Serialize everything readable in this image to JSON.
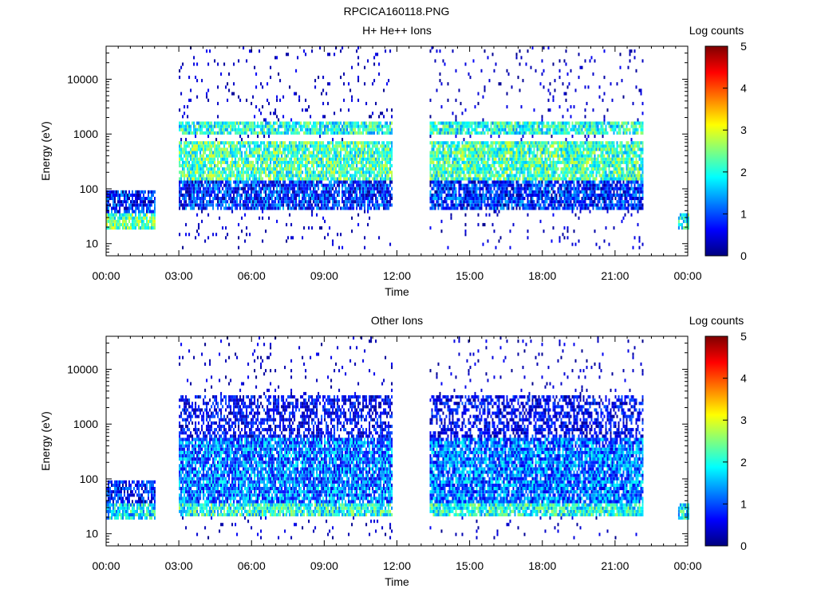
{
  "page": {
    "title": "RPCICA160118.PNG"
  },
  "colorbar": {
    "label": "Log counts",
    "ticks": [
      "0",
      "1",
      "2",
      "3",
      "4",
      "5"
    ],
    "stops": [
      "#00007f",
      "#0000ff",
      "#007fff",
      "#00ffff",
      "#7fff7f",
      "#ffff00",
      "#ff7f00",
      "#ff0000",
      "#7f0000"
    ]
  },
  "chart_data": [
    {
      "type": "heatmap",
      "title": "H+ He++ Ions",
      "xlabel": "Time",
      "ylabel": "Energy (eV)",
      "x_ticks": [
        "00:00",
        "03:00",
        "06:00",
        "09:00",
        "12:00",
        "15:00",
        "18:00",
        "21:00",
        "00:00"
      ],
      "xlim_hours": [
        0,
        24
      ],
      "y_scale": "log",
      "y_ticks": [
        "10",
        "100",
        "1000",
        "10000"
      ],
      "ylim": [
        6,
        40000
      ],
      "z_label": "Log counts",
      "zlim": [
        0,
        5
      ],
      "data_intervals_hours": [
        [
          0.0,
          2.0
        ],
        [
          3.0,
          11.8
        ],
        [
          13.35,
          22.15
        ],
        [
          23.6,
          24.0
        ]
      ],
      "gaps_hours": [
        [
          2.0,
          3.0
        ],
        [
          11.8,
          13.35
        ],
        [
          22.15,
          23.6
        ]
      ],
      "bands": [
        {
          "t_start": 0.0,
          "t_end": 2.0,
          "e_min": 18,
          "e_max": 35,
          "log_counts": 2.3
        },
        {
          "t_start": 0.0,
          "t_end": 2.0,
          "e_min": 35,
          "e_max": 95,
          "log_counts": 0.7
        },
        {
          "t_start": 3.0,
          "t_end": 11.8,
          "e_min": 1000,
          "e_max": 1800,
          "log_counts": 2.0
        },
        {
          "t_start": 3.0,
          "t_end": 11.8,
          "e_min": 150,
          "e_max": 700,
          "log_counts": 2.2
        },
        {
          "t_start": 3.0,
          "t_end": 11.8,
          "e_min": 40,
          "e_max": 150,
          "log_counts": 0.8
        },
        {
          "t_start": 13.35,
          "t_end": 22.15,
          "e_min": 1000,
          "e_max": 1800,
          "log_counts": 2.0
        },
        {
          "t_start": 13.35,
          "t_end": 22.15,
          "e_min": 150,
          "e_max": 700,
          "log_counts": 2.2
        },
        {
          "t_start": 13.35,
          "t_end": 22.15,
          "e_min": 40,
          "e_max": 150,
          "log_counts": 0.8
        },
        {
          "t_start": 23.6,
          "t_end": 24.0,
          "e_min": 18,
          "e_max": 35,
          "log_counts": 2.0
        }
      ]
    },
    {
      "type": "heatmap",
      "title": "Other Ions",
      "xlabel": "Time",
      "ylabel": "Energy (eV)",
      "x_ticks": [
        "00:00",
        "03:00",
        "06:00",
        "09:00",
        "12:00",
        "15:00",
        "18:00",
        "21:00",
        "00:00"
      ],
      "xlim_hours": [
        0,
        24
      ],
      "y_scale": "log",
      "y_ticks": [
        "10",
        "100",
        "1000",
        "10000"
      ],
      "ylim": [
        6,
        40000
      ],
      "z_label": "Log counts",
      "zlim": [
        0,
        5
      ],
      "data_intervals_hours": [
        [
          0.0,
          2.0
        ],
        [
          3.0,
          11.8
        ],
        [
          13.35,
          22.15
        ],
        [
          23.6,
          24.0
        ]
      ],
      "gaps_hours": [
        [
          2.0,
          3.0
        ],
        [
          11.8,
          13.35
        ],
        [
          22.15,
          23.6
        ]
      ],
      "bands": [
        {
          "t_start": 0.0,
          "t_end": 2.0,
          "e_min": 18,
          "e_max": 35,
          "log_counts": 1.8
        },
        {
          "t_start": 0.0,
          "t_end": 2.0,
          "e_min": 35,
          "e_max": 95,
          "log_counts": 0.6
        },
        {
          "t_start": 3.0,
          "t_end": 11.8,
          "e_min": 22,
          "e_max": 35,
          "log_counts": 2.0
        },
        {
          "t_start": 3.0,
          "t_end": 11.8,
          "e_min": 35,
          "e_max": 600,
          "log_counts": 1.2
        },
        {
          "t_start": 3.0,
          "t_end": 11.8,
          "e_min": 600,
          "e_max": 3500,
          "log_counts": 0.3
        },
        {
          "t_start": 13.35,
          "t_end": 22.15,
          "e_min": 22,
          "e_max": 35,
          "log_counts": 2.0
        },
        {
          "t_start": 13.35,
          "t_end": 22.15,
          "e_min": 35,
          "e_max": 600,
          "log_counts": 1.2
        },
        {
          "t_start": 13.35,
          "t_end": 22.15,
          "e_min": 600,
          "e_max": 3500,
          "log_counts": 0.3
        },
        {
          "t_start": 23.6,
          "t_end": 24.0,
          "e_min": 18,
          "e_max": 35,
          "log_counts": 1.8
        }
      ]
    }
  ]
}
